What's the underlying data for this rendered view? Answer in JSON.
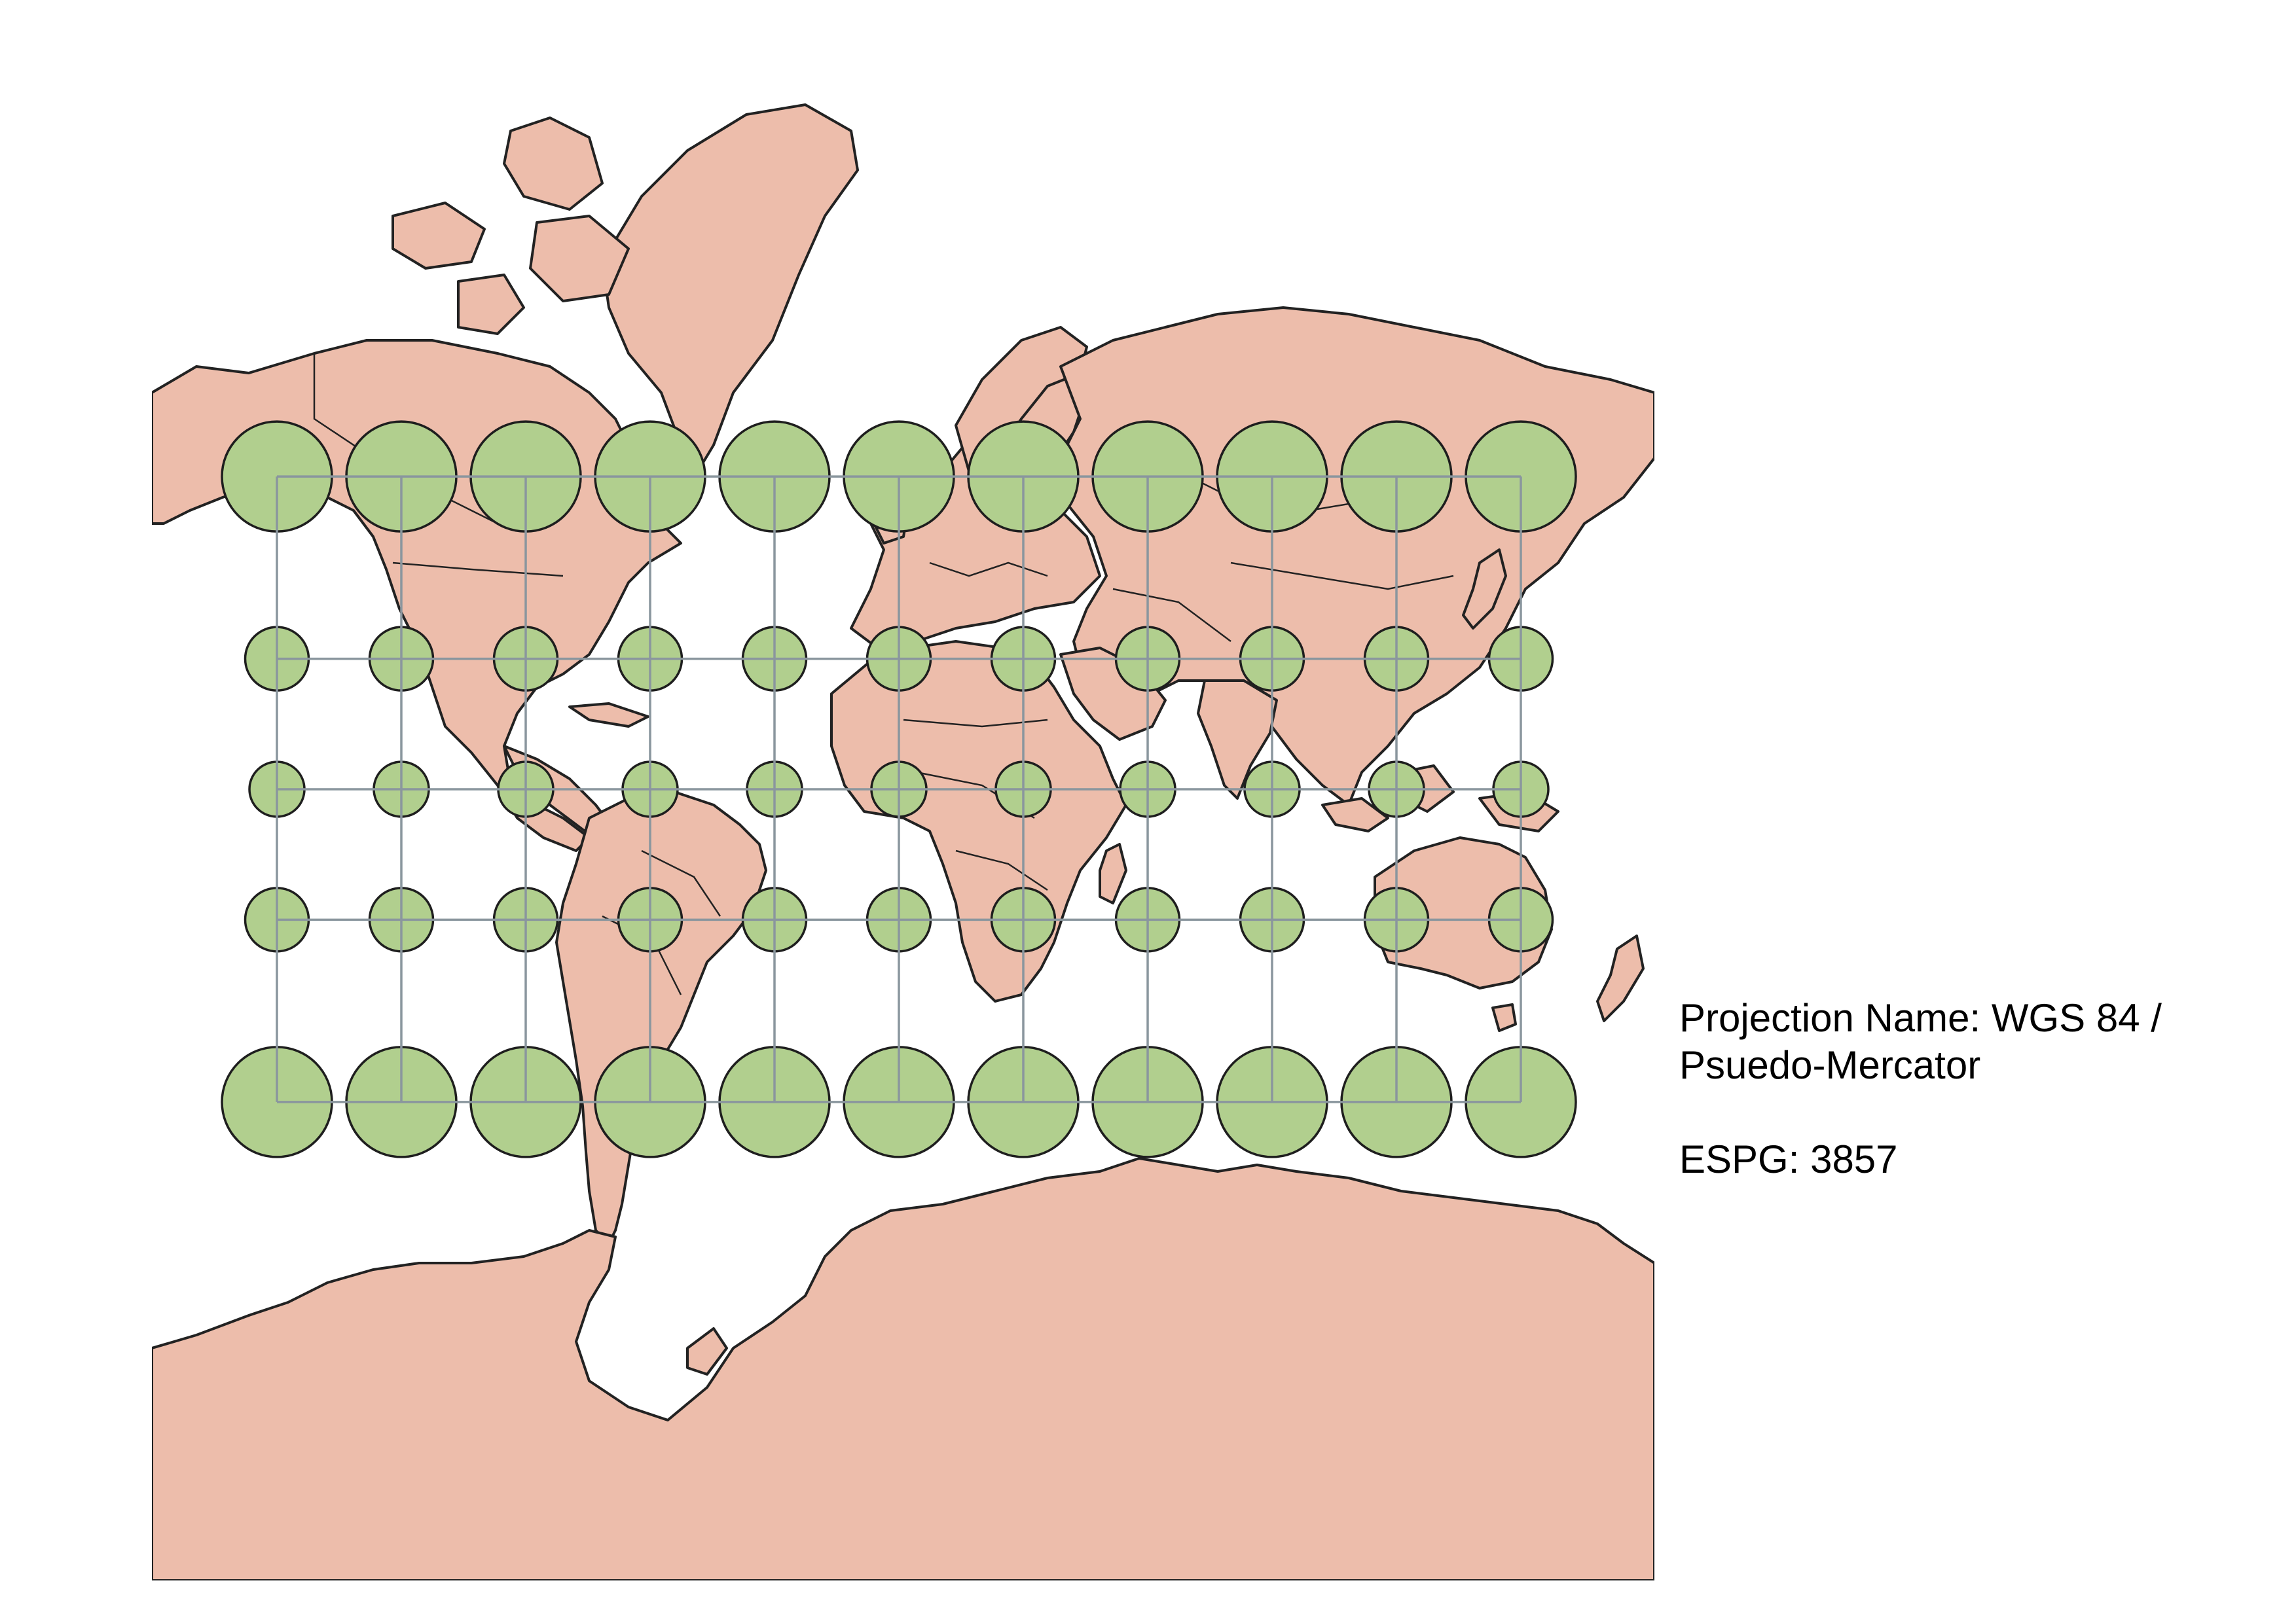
{
  "map": {
    "land_color": "#edbdab",
    "indicatrix_color": "#b1cf8e",
    "graticule_color": "#8a969e",
    "outline_color": "#222222",
    "graticule": {
      "longitudes": [
        -165,
        -135,
        -105,
        -75,
        -45,
        -15,
        15,
        45,
        75,
        105,
        135
      ],
      "latitudes": [
        60,
        30,
        0,
        -30,
        -60
      ]
    }
  },
  "legend": {
    "projection_line1": "Projection Name: WGS 84 /",
    "projection_line2": "Psuedo-Mercator",
    "epsg_line": "ESPG: 3857"
  }
}
